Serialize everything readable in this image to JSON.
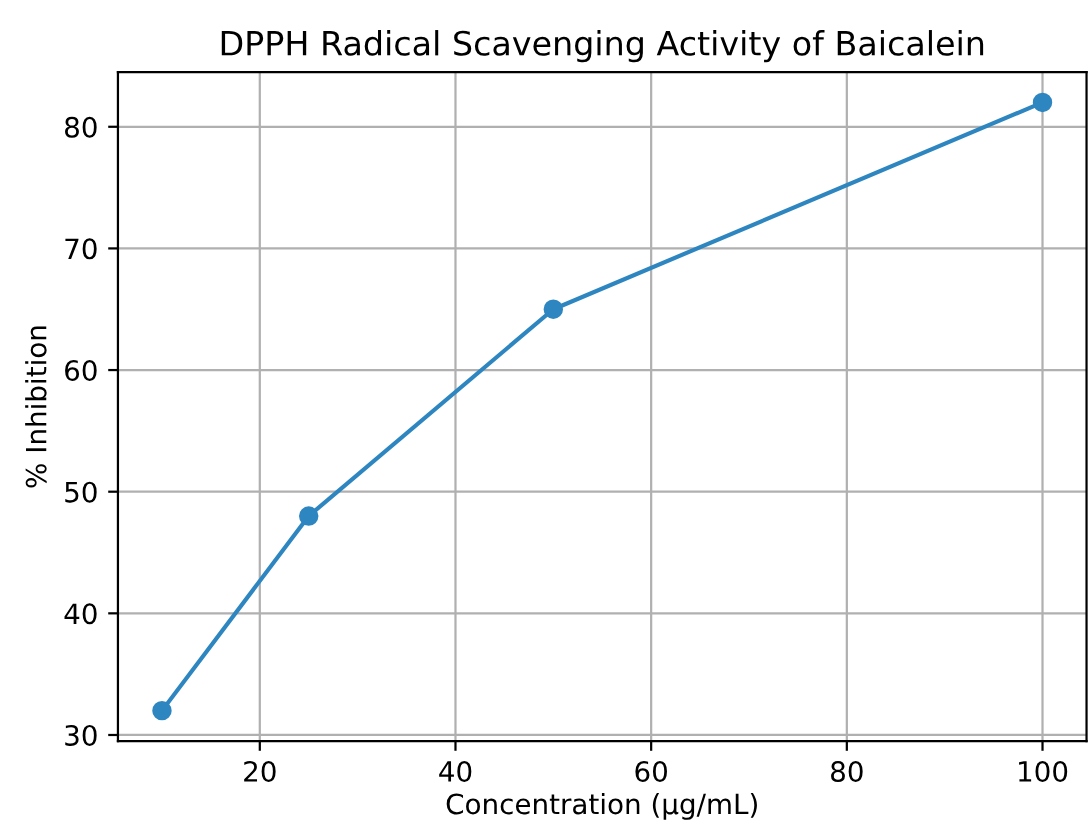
{
  "chart_data": {
    "type": "line",
    "title": "DPPH Radical Scavenging Activity of Baicalein",
    "xlabel": "Concentration (µg/mL)",
    "ylabel": "% Inhibition",
    "x": [
      10,
      25,
      50,
      100
    ],
    "series": [
      {
        "color": "#2e86c1",
        "values": [
          32,
          48,
          65,
          82
        ]
      }
    ],
    "xlim": [
      5.5,
      104.5
    ],
    "ylim": [
      29.5,
      84.5
    ],
    "xticks": [
      20,
      40,
      60,
      80,
      100
    ],
    "yticks": [
      30,
      40,
      50,
      60,
      70,
      80
    ],
    "grid": true,
    "marker": "circle",
    "line_style": "solid",
    "legend": false
  }
}
